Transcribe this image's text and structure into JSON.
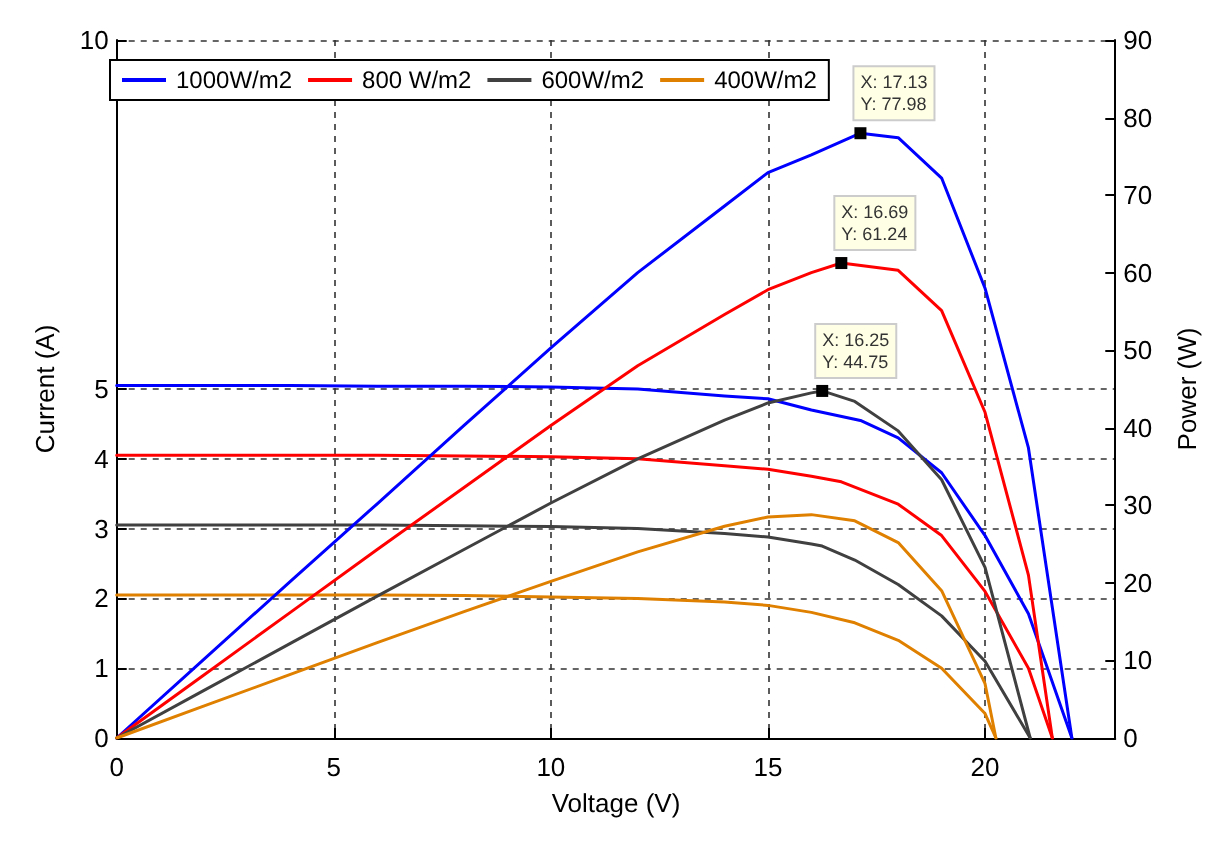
{
  "chart_data": {
    "type": "line",
    "xlabel": "Voltage (V)",
    "ylabel": "Current (A)",
    "y2label": "Power (W)",
    "xlim": [
      0,
      23
    ],
    "xticks": [
      0,
      5,
      10,
      15,
      20
    ],
    "ylim": [
      0,
      10
    ],
    "yticks": [
      0,
      1,
      2,
      3,
      4,
      5,
      10
    ],
    "y2lim": [
      0,
      90
    ],
    "y2ticks": [
      0,
      10,
      20,
      30,
      40,
      50,
      60,
      70,
      80,
      90
    ],
    "grid": true,
    "legend": "top left",
    "marker": "none",
    "line_style": "solid",
    "series": [
      {
        "name": "1000W/m2",
        "color": "#0000ff",
        "x": [
          0,
          2,
          4,
          6,
          8,
          10,
          12,
          14,
          15,
          16,
          17.13,
          18,
          19,
          20,
          21,
          22
        ],
        "values": [
          5.05,
          5.05,
          5.05,
          5.04,
          5.04,
          5.03,
          5.0,
          4.9,
          4.86,
          4.7,
          4.55,
          4.3,
          3.8,
          2.9,
          1.78,
          0
        ]
      },
      {
        "name": "800 W/m2",
        "color": "#ff0000",
        "x": [
          0,
          2,
          4,
          6,
          8,
          10,
          12,
          14,
          15,
          16,
          16.69,
          18,
          19,
          20,
          21,
          21.55
        ],
        "values": [
          4.05,
          4.05,
          4.05,
          4.05,
          4.04,
          4.03,
          4.0,
          3.9,
          3.85,
          3.75,
          3.67,
          3.35,
          2.9,
          2.1,
          1.0,
          0
        ]
      },
      {
        "name": "600W/m2",
        "color": "#404040",
        "x": [
          0,
          2,
          4,
          6,
          8,
          10,
          12,
          14,
          15,
          16,
          16.25,
          17,
          18,
          19,
          20,
          21.04
        ],
        "values": [
          3.05,
          3.05,
          3.05,
          3.05,
          3.04,
          3.03,
          3.0,
          2.93,
          2.88,
          2.78,
          2.75,
          2.55,
          2.2,
          1.75,
          1.1,
          0
        ]
      },
      {
        "name": "400W/m2",
        "color": "#e08000",
        "x": [
          0,
          2,
          4,
          6,
          8,
          10,
          12,
          14,
          15,
          16,
          17,
          18,
          19,
          20,
          20.25
        ],
        "values": [
          2.05,
          2.05,
          2.05,
          2.05,
          2.04,
          2.02,
          2.0,
          1.95,
          1.9,
          1.8,
          1.65,
          1.4,
          1.0,
          0.35,
          0
        ]
      },
      {
        "color": "#0000ff",
        "axis": "y2",
        "x": [
          0,
          2,
          4,
          6,
          8,
          10,
          12,
          14,
          15,
          16,
          17.13,
          18,
          19,
          20,
          21,
          22
        ],
        "values": [
          0,
          10.1,
          20.2,
          30.2,
          40.3,
          50.3,
          60,
          68.6,
          72.9,
          75.2,
          77.98,
          77.4,
          72.2,
          58,
          37.4,
          0
        ],
        "value_labels": [
          null,
          null,
          null,
          null,
          null,
          null,
          null,
          null,
          null,
          null,
          "X: 17.13\nY: 77.98",
          null,
          null,
          null,
          null,
          null
        ]
      },
      {
        "color": "#ff0000",
        "axis": "y2",
        "x": [
          0,
          2,
          4,
          6,
          8,
          10,
          12,
          14,
          15,
          16,
          16.69,
          18,
          19,
          20,
          21,
          21.55
        ],
        "values": [
          0,
          8.1,
          16.2,
          24.3,
          32.3,
          40.3,
          48,
          54.6,
          57.8,
          60,
          61.24,
          60.3,
          55.1,
          42,
          21,
          0
        ],
        "value_labels": [
          null,
          null,
          null,
          null,
          null,
          null,
          null,
          null,
          null,
          null,
          "X: 16.69\nY: 61.24",
          null,
          null,
          null,
          null,
          null
        ]
      },
      {
        "color": "#404040",
        "axis": "y2",
        "x": [
          0,
          2,
          4,
          6,
          8,
          10,
          12,
          14,
          15,
          16,
          16.25,
          17,
          18,
          19,
          20,
          21.04
        ],
        "values": [
          0,
          6.1,
          12.2,
          18.3,
          24.3,
          30.3,
          36,
          41,
          43.2,
          44.5,
          44.75,
          43.4,
          39.6,
          33.3,
          22,
          0
        ],
        "value_labels": [
          null,
          null,
          null,
          null,
          null,
          null,
          null,
          null,
          null,
          null,
          "X: 16.25\nY: 44.75",
          null,
          null,
          null,
          null,
          null
        ]
      },
      {
        "color": "#e08000",
        "axis": "y2",
        "x": [
          0,
          2,
          4,
          6,
          8,
          10,
          12,
          14,
          15,
          16,
          17,
          18,
          19,
          20,
          20.25
        ],
        "values": [
          0,
          4.1,
          8.2,
          12.3,
          16.3,
          20.2,
          24,
          27.3,
          28.5,
          28.8,
          28,
          25.2,
          19,
          7,
          0
        ]
      }
    ]
  }
}
